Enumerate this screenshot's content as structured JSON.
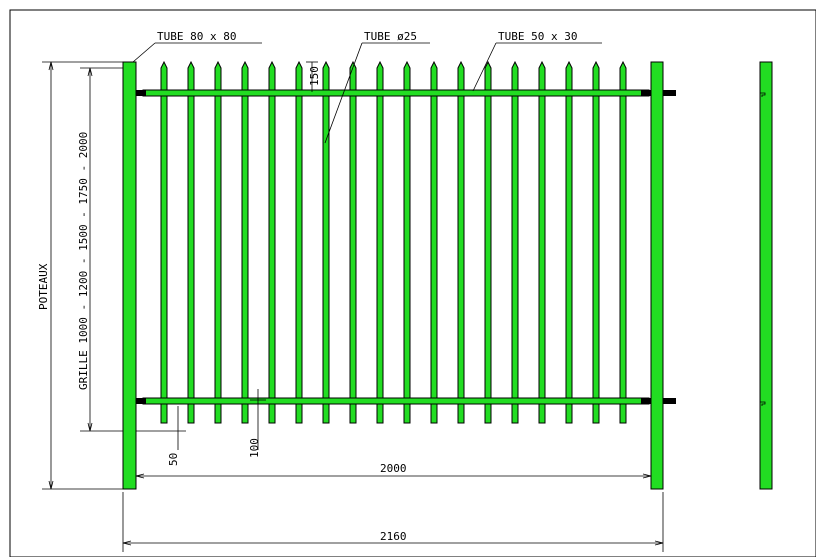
{
  "labels": {
    "post_tube": "TUBE 80 x 80",
    "bar_tube": "TUBE ø25",
    "rail_tube": "TUBE 50 x 30",
    "posts_height": "POTEAUX",
    "grille_heights": "GRILLE 1000 - 1200 - 1500 - 1750 - 2000",
    "spike_length": "150",
    "bottom_gap": "50",
    "rail_offset": "100",
    "grille_width": "2000",
    "total_width": "2160"
  },
  "colors": {
    "steel": "#22dd22",
    "line": "#000000",
    "background": "#ffffff"
  }
}
